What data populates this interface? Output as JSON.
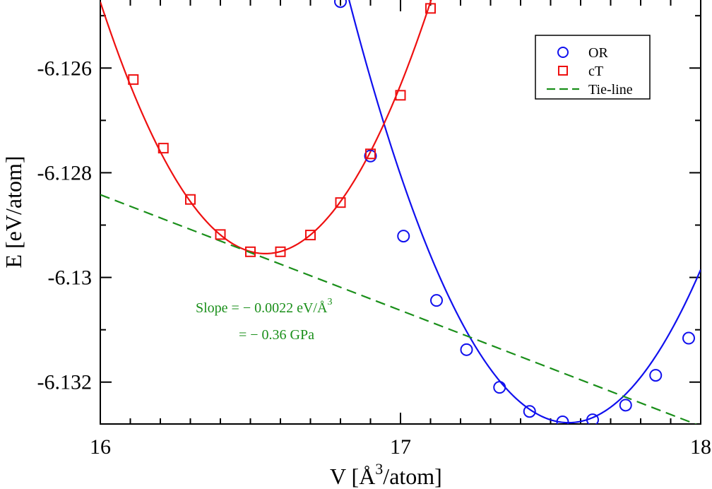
{
  "chart_data": {
    "type": "scatter",
    "xlabel": "V  [Å³/atom]",
    "xlabel_parts": {
      "pre": "V  [Å",
      "sup": "3",
      "post": "/atom]"
    },
    "ylabel": "E  [eV/atom]",
    "xlim": [
      16,
      18
    ],
    "ylim": [
      -6.1328,
      -6.1247
    ],
    "x_ticks": [
      16,
      17,
      18
    ],
    "x_tick_labels": [
      "16",
      "17",
      "18"
    ],
    "y_ticks": [
      -6.126,
      -6.128,
      -6.13,
      -6.132
    ],
    "y_tick_labels": [
      "-6.126",
      "-6.128",
      "-6.13",
      "-6.132"
    ],
    "grid": false,
    "legend_position": "top-right",
    "series": [
      {
        "name": "OR",
        "color": "#1010ee",
        "marker": "circle",
        "x": [
          16.8,
          16.9,
          17.01,
          17.12,
          17.22,
          17.33,
          17.43,
          17.54,
          17.64,
          17.75,
          17.85,
          17.96
        ],
        "y": [
          -6.12473,
          -6.12768,
          -6.12921,
          -6.13044,
          -6.13138,
          -6.1321,
          -6.13256,
          -6.13276,
          -6.13272,
          -6.13244,
          -6.13187,
          -6.13116
        ],
        "fit": {
          "type": "quadratic",
          "a": 0.0151,
          "vmin": 17.56,
          "emin": -6.132775
        }
      },
      {
        "name": "cT",
        "color": "#ee1010",
        "marker": "square",
        "x": [
          16.11,
          16.21,
          16.3,
          16.4,
          16.5,
          16.6,
          16.7,
          16.8,
          16.9,
          17.0,
          17.1
        ],
        "y": [
          -6.12622,
          -6.12753,
          -6.12851,
          -6.12918,
          -6.12951,
          -6.12951,
          -6.12919,
          -6.12857,
          -6.12764,
          -6.12652,
          -6.12486
        ],
        "fit": {
          "type": "quadratic",
          "a": 0.0159,
          "vmin": 16.55,
          "emin": -6.129545
        }
      },
      {
        "name": "Tie-line",
        "color": "#1a8f1a",
        "marker": "none",
        "line": "dashed",
        "x": [
          16,
          18
        ],
        "y": [
          -6.12842,
          -6.13284
        ]
      }
    ],
    "annotations": [
      {
        "text": "Slope = − 0.0022 eV/Å",
        "sup": "3"
      },
      {
        "text": "= − 0.36 GPa"
      }
    ]
  }
}
